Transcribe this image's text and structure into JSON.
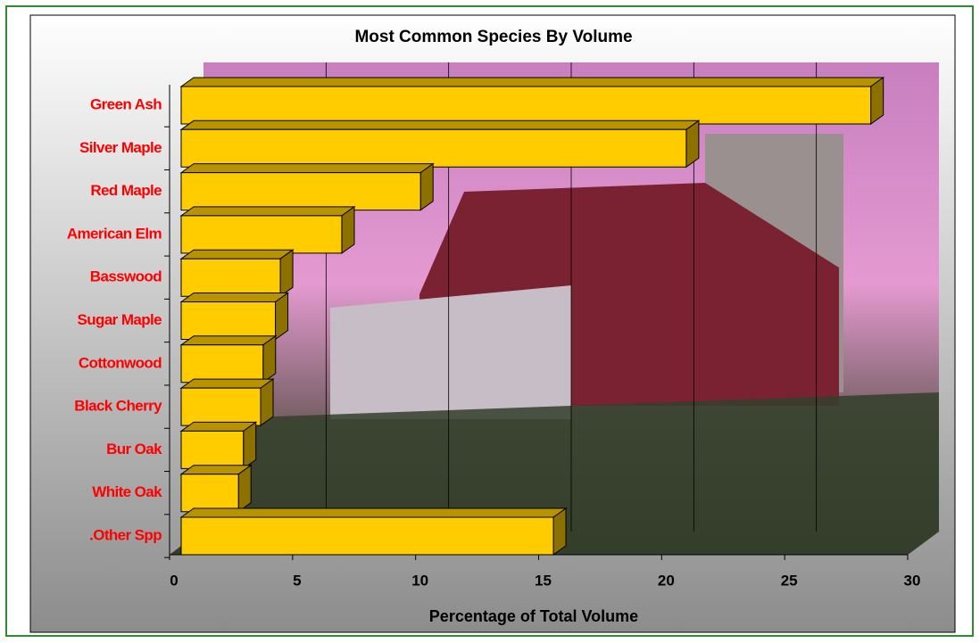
{
  "chart_data": {
    "type": "bar",
    "orientation": "horizontal",
    "title": "Most Common Species By Volume",
    "x_label": "Percentage of Total Volume",
    "categories": [
      "Green Ash",
      "Silver Maple",
      "Red Maple",
      "American Elm",
      "Basswood",
      "Sugar Maple",
      "Cottonwood",
      "Black Cherry",
      "Bur Oak",
      "White Oak",
      ".Other Spp"
    ],
    "values": [
      28.5,
      21.0,
      10.2,
      7.0,
      4.5,
      4.3,
      3.8,
      3.7,
      3.0,
      2.8,
      15.6
    ],
    "color": "#ffcc00",
    "xlim": [
      0,
      30
    ],
    "xticks": [
      0,
      5,
      10,
      15,
      20,
      25,
      30
    ],
    "grid": true
  }
}
